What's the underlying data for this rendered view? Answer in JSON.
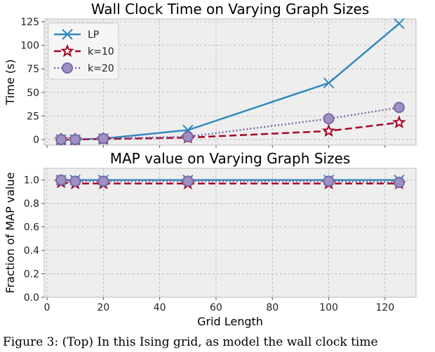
{
  "chart_data": [
    {
      "type": "line",
      "title": "Wall Clock Time on Varying Graph Sizes",
      "ylabel": "Time (s)",
      "xlabel": "",
      "x": [
        5,
        10,
        20,
        50,
        100,
        125
      ],
      "xlim": [
        -1,
        131
      ],
      "ylim": [
        -6,
        128
      ],
      "yticks": [
        0,
        25,
        50,
        75,
        100,
        125
      ],
      "grid": true,
      "legend": "top-left",
      "series": [
        {
          "name": "LP",
          "values": [
            0,
            0,
            1,
            10,
            60,
            123
          ],
          "color": "#348abd",
          "linestyle": "solid",
          "marker": "x"
        },
        {
          "name": "k=10",
          "values": [
            0,
            0,
            0.5,
            2,
            9,
            18
          ],
          "color": "#a60628",
          "linestyle": "dashed",
          "marker": "star"
        },
        {
          "name": "k=20",
          "values": [
            0,
            0,
            1,
            3,
            22,
            34
          ],
          "color": "#7a68a6",
          "linestyle": "dotted",
          "marker": "circle"
        }
      ]
    },
    {
      "type": "line",
      "title": "MAP value on Varying Graph Sizes",
      "ylabel": "Fraction of MAP value",
      "xlabel": "Grid Length",
      "x": [
        5,
        10,
        20,
        50,
        100,
        125
      ],
      "xlim": [
        -1,
        131
      ],
      "ylim": [
        0,
        1.1
      ],
      "yticks": [
        "0.0",
        "0.2",
        "0.4",
        "0.6",
        "0.8",
        "1.0"
      ],
      "xticks": [
        0,
        20,
        40,
        60,
        80,
        100,
        120
      ],
      "grid": true,
      "series": [
        {
          "name": "LP",
          "values": [
            1.0,
            1.0,
            1.0,
            1.0,
            1.0,
            1.0
          ],
          "color": "#348abd",
          "linestyle": "solid",
          "marker": "x"
        },
        {
          "name": "k=10",
          "values": [
            0.98,
            0.97,
            0.97,
            0.97,
            0.97,
            0.97
          ],
          "color": "#a60628",
          "linestyle": "dashed",
          "marker": "star"
        },
        {
          "name": "k=20",
          "values": [
            1.0,
            0.99,
            0.99,
            0.99,
            0.99,
            0.98
          ],
          "color": "#7a68a6",
          "linestyle": "dotted",
          "marker": "circle"
        }
      ]
    }
  ],
  "caption": "Figure 3: (Top) In this Ising grid, as model the wall clock time"
}
